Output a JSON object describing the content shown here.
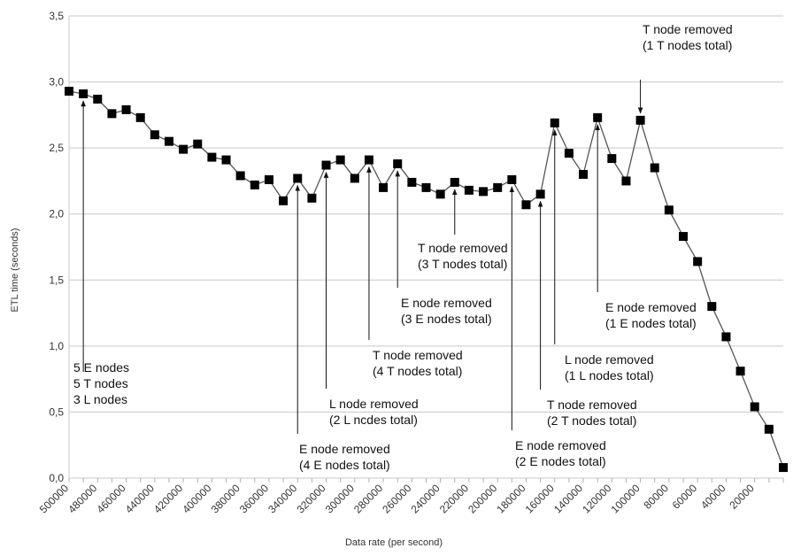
{
  "chart_data": {
    "type": "line",
    "title": "",
    "xlabel": "Data rate (per second)",
    "ylabel": "ETL time (seconds)",
    "ylim": [
      0,
      3.5
    ],
    "y_ticks": [
      "0,0",
      "0,5",
      "1,0",
      "1,5",
      "2,0",
      "2,5",
      "3,0",
      "3,5"
    ],
    "x_ticks": [
      "500000",
      "480000",
      "460000",
      "440000",
      "420000",
      "400000",
      "380000",
      "360000",
      "340000",
      "320000",
      "300000",
      "280000",
      "260000",
      "240000",
      "220000",
      "200000",
      "180000",
      "160000",
      "140000",
      "120000",
      "100000",
      "80000",
      "60000",
      "40000",
      "20000"
    ],
    "grid": "horizontal",
    "x": [
      500000,
      490000,
      480000,
      470000,
      460000,
      450000,
      440000,
      430000,
      420000,
      410000,
      400000,
      390000,
      380000,
      370000,
      360000,
      350000,
      340000,
      330000,
      320000,
      310000,
      300000,
      290000,
      280000,
      270000,
      260000,
      250000,
      240000,
      230000,
      220000,
      210000,
      200000,
      190000,
      180000,
      170000,
      160000,
      150000,
      140000,
      130000,
      120000,
      110000,
      100000,
      90000,
      80000,
      70000,
      60000,
      50000,
      40000,
      30000,
      20000,
      10000,
      0
    ],
    "series": [
      {
        "name": "ETL time",
        "values": [
          2.93,
          2.91,
          2.87,
          2.76,
          2.79,
          2.73,
          2.6,
          2.55,
          2.49,
          2.53,
          2.43,
          2.41,
          2.29,
          2.22,
          2.26,
          2.1,
          2.27,
          2.12,
          2.37,
          2.41,
          2.27,
          2.41,
          2.2,
          2.38,
          2.24,
          2.2,
          2.15,
          2.24,
          2.18,
          2.17,
          2.2,
          2.26,
          2.07,
          2.15,
          2.69,
          2.46,
          2.3,
          2.73,
          2.42,
          2.25,
          2.71,
          2.35,
          2.03,
          1.83,
          1.64,
          1.3,
          1.07,
          0.81,
          0.54,
          0.37,
          0.08
        ]
      }
    ],
    "annotations": [
      {
        "lines": [
          "5 E nodes",
          "5 T nodes",
          "3 L nodes"
        ],
        "target_index": 1
      },
      {
        "lines": [
          "E node removed",
          "(4 E nodes total)"
        ],
        "target_index": 16
      },
      {
        "lines": [
          "L node removed",
          "(2 L ncdes total)"
        ],
        "target_index": 18
      },
      {
        "lines": [
          "T node removed",
          "(4 T nodes total)"
        ],
        "target_index": 21
      },
      {
        "lines": [
          "E node removed",
          "(3 E nodes total)"
        ],
        "target_index": 23
      },
      {
        "lines": [
          "T node removed",
          "(3 T nodes total)"
        ],
        "target_index": 27
      },
      {
        "lines": [
          "E node removed",
          "(2 E nodes total)"
        ],
        "target_index": 31
      },
      {
        "lines": [
          "T node removed",
          "(2 T nodes total)"
        ],
        "target_index": 33
      },
      {
        "lines": [
          "L node removed",
          "(1 L nodes total)"
        ],
        "target_index": 34
      },
      {
        "lines": [
          "E node removed",
          "(1 E nodes total)"
        ],
        "target_index": 37
      },
      {
        "lines": [
          "T node removed",
          "(1 T nodes total)"
        ],
        "target_index": 40
      }
    ]
  }
}
